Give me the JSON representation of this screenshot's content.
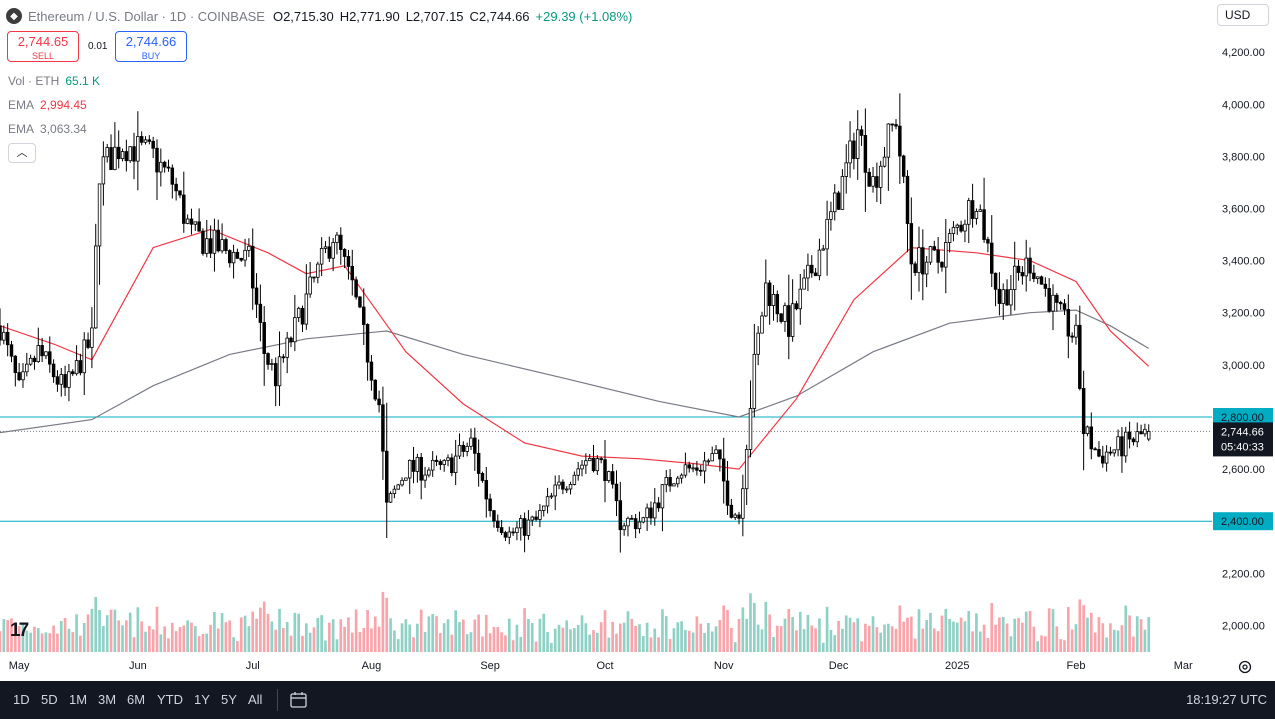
{
  "header": {
    "coin_icon": "ethereum-icon",
    "title": "Ethereum / U.S. Dollar · 1D · COINBASE",
    "open_label": "O",
    "open": "2,715.30",
    "high_label": "H",
    "high": "2,771.90",
    "low_label": "L",
    "low": "2,707.15",
    "close_label": "C",
    "close": "2,744.66",
    "change": "+29.39 (+1.08%)"
  },
  "trade": {
    "sell_price": "2,744.65",
    "sell_label": "SELL",
    "spread": "0.01",
    "buy_price": "2,744.66",
    "buy_label": "BUY"
  },
  "indicators": [
    {
      "name": "Vol · ETH",
      "value": "65.1 K",
      "color": "#089981"
    },
    {
      "name": "EMA",
      "value": "2,994.45",
      "color": "#f23645"
    },
    {
      "name": "EMA",
      "value": "3,063.34",
      "color": "#787b86"
    }
  ],
  "currency": "USD",
  "toolbar": {
    "timeframes": [
      "1D",
      "5D",
      "1M",
      "3M",
      "6M",
      "YTD",
      "1Y",
      "5Y",
      "All"
    ],
    "calendar_icon": "calendar-range-icon",
    "clock": "18:19:27 UTC"
  },
  "colors": {
    "up": "#089981",
    "down": "#f23645",
    "candle": "#000000",
    "ema_short": "#f23645",
    "ema_long": "#787b86",
    "level": "#00acc1"
  },
  "chart_data": {
    "type": "candlestick",
    "timeframe": "1D",
    "x_ticks": [
      "May",
      "Jun",
      "Jul",
      "Aug",
      "Sep",
      "Oct",
      "Nov",
      "Dec",
      "2025",
      "Feb",
      "Mar"
    ],
    "y_ticks": [
      2000,
      2200,
      2400,
      2600,
      2800,
      3000,
      3200,
      3400,
      3600,
      3800,
      4000,
      4200
    ],
    "y_tick_labels": [
      "2,000.00",
      "2,200.00",
      "2,400.00",
      "2,600.00",
      "2,800.00",
      "3,000.00",
      "3,200.00",
      "3,400.00",
      "3,600.00",
      "3,800.00",
      "4,000.00",
      "4,200.00"
    ],
    "ylim": [
      1925,
      4285
    ],
    "price_path": [
      [
        "2024-04-26",
        3150
      ],
      [
        "2024-05-01",
        2900
      ],
      [
        "2024-05-06",
        3050
      ],
      [
        "2024-05-13",
        2900
      ],
      [
        "2024-05-20",
        3100
      ],
      [
        "2024-05-22",
        3750
      ],
      [
        "2024-05-28",
        3850
      ],
      [
        "2024-06-05",
        3800
      ],
      [
        "2024-06-10",
        3700
      ],
      [
        "2024-06-15",
        3500
      ],
      [
        "2024-06-22",
        3450
      ],
      [
        "2024-06-30",
        3400
      ],
      [
        "2024-07-04",
        3050
      ],
      [
        "2024-07-07",
        2950
      ],
      [
        "2024-07-15",
        3250
      ],
      [
        "2024-07-22",
        3500
      ],
      [
        "2024-07-27",
        3300
      ],
      [
        "2024-08-03",
        2850
      ],
      [
        "2024-08-05",
        2450
      ],
      [
        "2024-08-10",
        2600
      ],
      [
        "2024-08-20",
        2600
      ],
      [
        "2024-08-27",
        2700
      ],
      [
        "2024-09-01",
        2450
      ],
      [
        "2024-09-06",
        2350
      ],
      [
        "2024-09-13",
        2400
      ],
      [
        "2024-09-20",
        2550
      ],
      [
        "2024-09-27",
        2650
      ],
      [
        "2024-10-01",
        2600
      ],
      [
        "2024-10-05",
        2400
      ],
      [
        "2024-10-11",
        2400
      ],
      [
        "2024-10-20",
        2600
      ],
      [
        "2024-10-24",
        2600
      ],
      [
        "2024-10-30",
        2650
      ],
      [
        "2024-11-03",
        2450
      ],
      [
        "2024-11-05",
        2420
      ],
      [
        "2024-11-09",
        3000
      ],
      [
        "2024-11-12",
        3300
      ],
      [
        "2024-11-18",
        3150
      ],
      [
        "2024-11-25",
        3400
      ],
      [
        "2024-12-01",
        3650
      ],
      [
        "2024-12-06",
        3900
      ],
      [
        "2024-12-10",
        3700
      ],
      [
        "2024-12-16",
        3950
      ],
      [
        "2024-12-20",
        3400
      ],
      [
        "2024-12-27",
        3400
      ],
      [
        "2025-01-06",
        3650
      ],
      [
        "2025-01-12",
        3250
      ],
      [
        "2025-01-20",
        3400
      ],
      [
        "2025-01-27",
        3200
      ],
      [
        "2025-02-01",
        3100
      ],
      [
        "2025-02-03",
        2750
      ],
      [
        "2025-02-07",
        2650
      ],
      [
        "2025-02-12",
        2680
      ],
      [
        "2025-02-20",
        2745
      ]
    ],
    "last_candle": {
      "date": "2025-02-20",
      "open": 2715.3,
      "high": 2771.9,
      "low": 2707.15,
      "close": 2744.66
    },
    "ema_short": [
      [
        "2024-04-26",
        3150
      ],
      [
        "2024-05-10",
        3080
      ],
      [
        "2024-05-20",
        3020
      ],
      [
        "2024-06-05",
        3450
      ],
      [
        "2024-06-20",
        3520
      ],
      [
        "2024-07-05",
        3430
      ],
      [
        "2024-07-15",
        3350
      ],
      [
        "2024-07-25",
        3380
      ],
      [
        "2024-08-10",
        3050
      ],
      [
        "2024-08-25",
        2850
      ],
      [
        "2024-09-10",
        2700
      ],
      [
        "2024-09-25",
        2650
      ],
      [
        "2024-10-10",
        2640
      ],
      [
        "2024-10-25",
        2620
      ],
      [
        "2024-11-05",
        2600
      ],
      [
        "2024-11-20",
        2870
      ],
      [
        "2024-12-05",
        3250
      ],
      [
        "2024-12-20",
        3450
      ],
      [
        "2025-01-06",
        3430
      ],
      [
        "2025-01-20",
        3400
      ],
      [
        "2025-02-01",
        3320
      ],
      [
        "2025-02-10",
        3130
      ],
      [
        "2025-02-20",
        2994.45
      ]
    ],
    "ema_long": [
      [
        "2024-04-26",
        2740
      ],
      [
        "2024-05-20",
        2790
      ],
      [
        "2024-06-05",
        2920
      ],
      [
        "2024-06-25",
        3040
      ],
      [
        "2024-07-15",
        3100
      ],
      [
        "2024-08-05",
        3130
      ],
      [
        "2024-08-25",
        3040
      ],
      [
        "2024-09-20",
        2950
      ],
      [
        "2024-10-15",
        2860
      ],
      [
        "2024-11-05",
        2800
      ],
      [
        "2024-11-20",
        2880
      ],
      [
        "2024-12-10",
        3050
      ],
      [
        "2024-12-30",
        3160
      ],
      [
        "2025-01-20",
        3200
      ],
      [
        "2025-02-01",
        3210
      ],
      [
        "2025-02-10",
        3150
      ],
      [
        "2025-02-20",
        3063.34
      ]
    ],
    "horizontal_levels": [
      {
        "value": 2800,
        "label": "2,800.00"
      },
      {
        "value": 2400,
        "label": "2,400.00"
      }
    ],
    "last_price_label": "2,744.66",
    "countdown": "05:40:33",
    "volume_series": "Vol · ETH",
    "volume_last": "65.1 K",
    "grid": false
  }
}
